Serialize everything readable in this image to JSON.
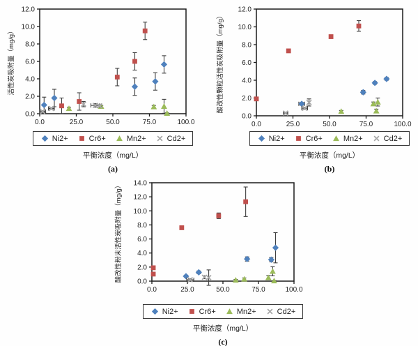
{
  "figure": {
    "colors": {
      "ni": "#4F81BD",
      "cr": "#C0504D",
      "mn": "#9BBB59",
      "cd": "#A8A8A8",
      "error_bar": "#3F3F3F",
      "axis": "#1A1A1A"
    },
    "legend_labels": [
      "Ni2+",
      "Cr6+",
      "Mn2+",
      "Cd2+"
    ]
  },
  "chart_data": [
    {
      "id": "a",
      "type": "scatter",
      "caption": "(a)",
      "ylabel": "活性炭吸附量（mg/g）",
      "xlabel": "平衡浓度（mg/L）",
      "xlim": [
        0,
        100
      ],
      "ylim": [
        0,
        12
      ],
      "xticks": [
        "0.0",
        "25.0",
        "50.0",
        "75.0",
        "100.0"
      ],
      "yticks": [
        "0.0",
        "2.0",
        "4.0",
        "6.0",
        "8.0",
        "10.0",
        "12.0"
      ],
      "grid": false,
      "legend_position": "bottom",
      "series": [
        {
          "name": "Ni2+",
          "marker": "diamond",
          "color": "#4F81BD",
          "points": [
            {
              "x": 3,
              "y": 1.0,
              "ey": 0.9
            },
            {
              "x": 10,
              "y": 1.8,
              "ey": 1.0
            },
            {
              "x": 65,
              "y": 3.1,
              "ey": 1.0
            },
            {
              "x": 79,
              "y": 3.7,
              "ey": 1.0
            },
            {
              "x": 85,
              "y": 5.65,
              "ey": 1.0
            }
          ]
        },
        {
          "name": "Cr6+",
          "marker": "square",
          "color": "#C0504D",
          "points": [
            {
              "x": 15,
              "y": 0.9,
              "ey": 0.9
            },
            {
              "x": 27,
              "y": 1.4,
              "ey": 1.0
            },
            {
              "x": 53,
              "y": 4.2,
              "ey": 1.0
            },
            {
              "x": 65,
              "y": 6.0,
              "ey": 1.0
            },
            {
              "x": 72,
              "y": 9.5,
              "ey": 1.0
            }
          ]
        },
        {
          "name": "Mn2+",
          "marker": "triangle",
          "color": "#9BBB59",
          "points": [
            {
              "x": 20,
              "y": 0.6,
              "ey": 0.15
            },
            {
              "x": 42,
              "y": 0.85,
              "ey": 0.1
            },
            {
              "x": 78,
              "y": 0.8,
              "ey": 0.15
            },
            {
              "x": 85,
              "y": 0.85,
              "ey": 0.8
            },
            {
              "x": 87,
              "y": 0.05,
              "ey": 0.05
            }
          ]
        },
        {
          "name": "Cd2+",
          "marker": "x",
          "color": "#A8A8A8",
          "points": [
            {
              "x": 2,
              "y": 0.25,
              "ex": 2,
              "ey": 0.1
            },
            {
              "x": 8,
              "y": 0.6,
              "ex": 2,
              "ey": 0.1
            },
            {
              "x": 30,
              "y": 1.1,
              "ey": 0.3
            },
            {
              "x": 38,
              "y": 0.95,
              "ex": 3,
              "ey": 0.2
            },
            {
              "x": 41,
              "y": 0.9,
              "ey": 0.1
            }
          ]
        }
      ]
    },
    {
      "id": "b",
      "type": "scatter",
      "caption": "(b)",
      "ylabel": "酸改性颗粒活性炭吸附量（mg/g）",
      "xlabel": "平衡浓度（mg/L）",
      "xlim": [
        0,
        100
      ],
      "ylim": [
        0,
        12
      ],
      "xticks": [
        "0.0",
        "25.0",
        "50.0",
        "75.0",
        "100.0"
      ],
      "yticks": [
        "0.0",
        "2.0",
        "4.0",
        "6.0",
        "8.0",
        "10.0",
        "12.0"
      ],
      "grid": false,
      "legend_position": "bottom",
      "series": [
        {
          "name": "Ni2+",
          "marker": "diamond",
          "color": "#4F81BD",
          "points": [
            {
              "x": 31,
              "y": 1.35,
              "ex": 2,
              "ey": 0.15
            },
            {
              "x": 73,
              "y": 2.65,
              "ey": 0.2
            },
            {
              "x": 81,
              "y": 3.7,
              "ey": 0.15
            },
            {
              "x": 89,
              "y": 4.15,
              "ey": 0.15
            }
          ]
        },
        {
          "name": "Cr6+",
          "marker": "square",
          "color": "#C0504D",
          "points": [
            {
              "x": 0,
              "y": 1.9,
              "ey": 0.1
            },
            {
              "x": 22,
              "y": 7.3,
              "ey": 0.15
            },
            {
              "x": 51,
              "y": 8.9,
              "ey": 0.1
            },
            {
              "x": 70,
              "y": 10.1,
              "ey": 0.6
            }
          ]
        },
        {
          "name": "Mn2+",
          "marker": "triangle",
          "color": "#9BBB59",
          "points": [
            {
              "x": 58,
              "y": 0.5,
              "ey": 0.1
            },
            {
              "x": 80,
              "y": 1.35,
              "ey": 0.2
            },
            {
              "x": 83,
              "y": 1.55,
              "ey": 0.45
            },
            {
              "x": 82,
              "y": 0.55,
              "ey": 0.2
            }
          ]
        },
        {
          "name": "Cd2+",
          "marker": "x",
          "color": "#A8A8A8",
          "points": [
            {
              "x": 20,
              "y": 0.3,
              "ex": 1.5,
              "ey": 0.1
            },
            {
              "x": 33,
              "y": 0.85,
              "ex": 2,
              "ey": 0.12
            },
            {
              "x": 36,
              "y": 1.5,
              "ey": 0.4
            }
          ]
        }
      ]
    },
    {
      "id": "c",
      "type": "scatter",
      "caption": "(c)",
      "ylabel": "酸改性粉末活性炭吸附量（mg/g）",
      "xlabel": "平衡浓度（mg/L）",
      "xlim": [
        0,
        100
      ],
      "ylim": [
        0,
        14
      ],
      "xticks": [
        "0.0",
        "25.0",
        "50.0",
        "75.0",
        "100.0"
      ],
      "yticks": [
        "0.0",
        "2.0",
        "4.0",
        "6.0",
        "8.0",
        "10.0",
        "12.0",
        "14.0"
      ],
      "grid": false,
      "legend_position": "bottom",
      "series": [
        {
          "name": "Ni2+",
          "marker": "diamond",
          "color": "#4F81BD",
          "points": [
            {
              "x": 24,
              "y": 0.7,
              "ey": 0.15
            },
            {
              "x": 33,
              "y": 1.25,
              "ey": 0.2
            },
            {
              "x": 67,
              "y": 3.15,
              "ey": 0.3
            },
            {
              "x": 84,
              "y": 3.05,
              "ey": 0.3
            },
            {
              "x": 87,
              "y": 4.75,
              "ey": 2.15
            }
          ]
        },
        {
          "name": "Cr6+",
          "marker": "square",
          "color": "#C0504D",
          "points": [
            {
              "x": 1,
              "y": 1.9,
              "ey": 0.15
            },
            {
              "x": 1,
              "y": 1.0,
              "ey": 0.15
            },
            {
              "x": 21,
              "y": 7.6,
              "ey": 0.15
            },
            {
              "x": 47,
              "y": 9.3,
              "ey": 0.4
            },
            {
              "x": 66,
              "y": 11.3,
              "ey": 2.1
            }
          ]
        },
        {
          "name": "Mn2+",
          "marker": "triangle",
          "color": "#9BBB59",
          "points": [
            {
              "x": 59,
              "y": 0.15,
              "ey": 0.1
            },
            {
              "x": 65,
              "y": 0.3,
              "ey": 0.15
            },
            {
              "x": 82,
              "y": 0.5,
              "ey": 0.3
            },
            {
              "x": 85,
              "y": 1.4,
              "ey": 0.65
            },
            {
              "x": 86,
              "y": 0.05,
              "ey": 0.05
            }
          ]
        },
        {
          "name": "Cd2+",
          "marker": "x",
          "color": "#A8A8A8",
          "points": [
            {
              "x": 27,
              "y": 0.2,
              "ex": 2.5,
              "ey": 0.15
            },
            {
              "x": 37,
              "y": 0.55,
              "ey": 0.2
            },
            {
              "x": 40,
              "y": 0.5,
              "ey": 1.1
            }
          ]
        }
      ]
    }
  ]
}
